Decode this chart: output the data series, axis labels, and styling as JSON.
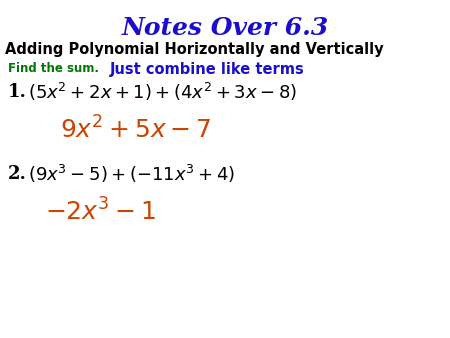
{
  "title": "Notes Over 6.3",
  "title_color": "#1a0dcc",
  "title_fontsize": 18,
  "subtitle": "Adding Polynomial Horizontally and Vertically",
  "subtitle_color": "#000000",
  "subtitle_fontsize": 10.5,
  "instruction_find": "Find the sum.",
  "instruction_find_color": "#007700",
  "instruction_find_fontsize": 8.5,
  "instruction_just": "Just combine like terms",
  "instruction_just_color": "#1a0dcc",
  "instruction_just_fontsize": 10.5,
  "problem1_label": "1.",
  "problem1_color": "#000000",
  "problem1_fontsize": 13,
  "answer1_color": "#cc4400",
  "answer1_fontsize": 18,
  "problem2_label": "2.",
  "problem2_color": "#000000",
  "problem2_fontsize": 13,
  "answer2_color": "#cc4400",
  "answer2_fontsize": 18,
  "bg_color": "#ffffff"
}
